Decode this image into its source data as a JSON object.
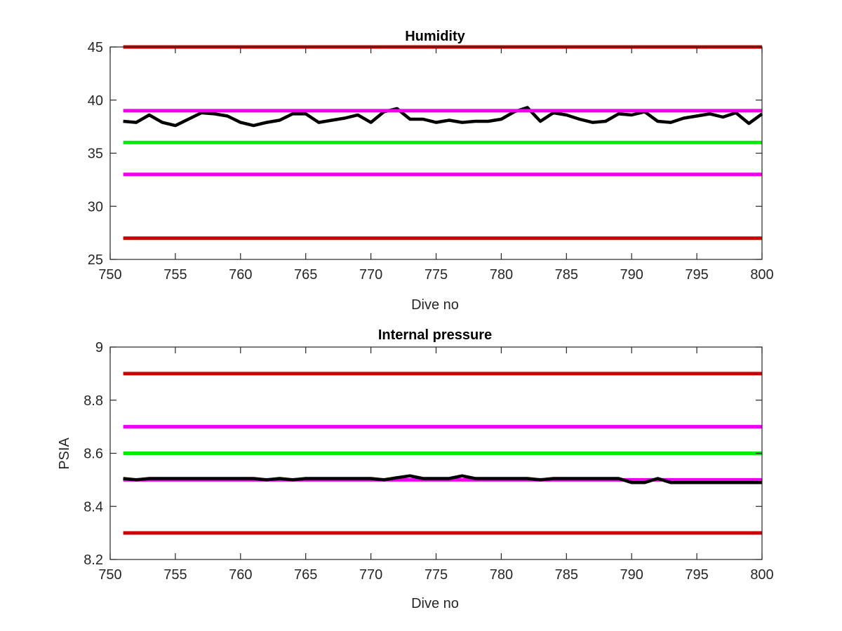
{
  "chart_data": [
    {
      "type": "line",
      "title": "Humidity",
      "xlabel": "Dive no",
      "ylabel": "",
      "xlim": [
        750,
        800
      ],
      "ylim": [
        25,
        45
      ],
      "xticks": [
        "750",
        "755",
        "760",
        "765",
        "770",
        "775",
        "780",
        "785",
        "790",
        "795",
        "800"
      ],
      "yticks": [
        "25",
        "30",
        "35",
        "40",
        "45"
      ],
      "grid": false,
      "series": [
        {
          "kind": "measured",
          "color": "#000000",
          "x": [
            751,
            752,
            753,
            754,
            755,
            756,
            757,
            758,
            759,
            760,
            761,
            762,
            763,
            764,
            765,
            766,
            767,
            768,
            769,
            770,
            771,
            772,
            773,
            774,
            775,
            776,
            777,
            778,
            779,
            780,
            781,
            782,
            783,
            784,
            785,
            786,
            787,
            788,
            789,
            790,
            791,
            792,
            793,
            794,
            795,
            796,
            797,
            798,
            799,
            800
          ],
          "y": [
            38.0,
            37.9,
            38.6,
            37.9,
            37.6,
            38.2,
            38.8,
            38.7,
            38.5,
            37.9,
            37.6,
            37.9,
            38.1,
            38.7,
            38.7,
            37.9,
            38.1,
            38.3,
            38.6,
            37.9,
            38.9,
            39.2,
            38.2,
            38.2,
            37.9,
            38.1,
            37.9,
            38.0,
            38.0,
            38.2,
            38.9,
            39.3,
            38.0,
            38.8,
            38.6,
            38.2,
            37.9,
            38.0,
            38.7,
            38.6,
            38.9,
            38.0,
            37.9,
            38.3,
            38.5,
            38.7,
            38.4,
            38.8,
            37.8,
            38.7
          ]
        },
        {
          "kind": "limit",
          "color": "#cc0000",
          "x": [
            751,
            800
          ],
          "y": [
            45,
            45
          ]
        },
        {
          "kind": "limit",
          "color": "#ee00ee",
          "x": [
            751,
            800
          ],
          "y": [
            39,
            39
          ]
        },
        {
          "kind": "limit",
          "color": "#00ee00",
          "x": [
            751,
            800
          ],
          "y": [
            36,
            36
          ]
        },
        {
          "kind": "limit",
          "color": "#ee00ee",
          "x": [
            751,
            800
          ],
          "y": [
            33,
            33
          ]
        },
        {
          "kind": "limit",
          "color": "#cc0000",
          "x": [
            751,
            800
          ],
          "y": [
            27,
            27
          ]
        }
      ]
    },
    {
      "type": "line",
      "title": "Internal pressure",
      "xlabel": "Dive no",
      "ylabel": "PSIA",
      "xlim": [
        750,
        800
      ],
      "ylim": [
        8.2,
        9.0
      ],
      "xticks": [
        "750",
        "755",
        "760",
        "765",
        "770",
        "775",
        "780",
        "785",
        "790",
        "795",
        "800"
      ],
      "yticks": [
        "8.2",
        "8.4",
        "8.6",
        "8.8",
        "9"
      ],
      "grid": false,
      "series": [
        {
          "kind": "measured",
          "color": "#000000",
          "x": [
            751,
            752,
            753,
            754,
            755,
            756,
            757,
            758,
            759,
            760,
            761,
            762,
            763,
            764,
            765,
            766,
            767,
            768,
            769,
            770,
            771,
            772,
            773,
            774,
            775,
            776,
            777,
            778,
            779,
            780,
            781,
            782,
            783,
            784,
            785,
            786,
            787,
            788,
            789,
            790,
            791,
            792,
            793,
            794,
            795,
            796,
            797,
            798,
            799,
            800
          ],
          "y": [
            8.505,
            8.5,
            8.505,
            8.505,
            8.505,
            8.505,
            8.505,
            8.505,
            8.505,
            8.505,
            8.505,
            8.5,
            8.505,
            8.5,
            8.505,
            8.505,
            8.505,
            8.505,
            8.505,
            8.505,
            8.5,
            8.508,
            8.515,
            8.505,
            8.505,
            8.505,
            8.515,
            8.505,
            8.505,
            8.505,
            8.505,
            8.505,
            8.5,
            8.505,
            8.505,
            8.505,
            8.505,
            8.505,
            8.505,
            8.49,
            8.49,
            8.505,
            8.49,
            8.49,
            8.49,
            8.49,
            8.49,
            8.49,
            8.49,
            8.49
          ]
        },
        {
          "kind": "limit",
          "color": "#cc0000",
          "x": [
            751,
            800
          ],
          "y": [
            8.9,
            8.9
          ]
        },
        {
          "kind": "limit",
          "color": "#ee00ee",
          "x": [
            751,
            800
          ],
          "y": [
            8.7,
            8.7
          ]
        },
        {
          "kind": "limit",
          "color": "#00ee00",
          "x": [
            751,
            800
          ],
          "y": [
            8.6,
            8.6
          ]
        },
        {
          "kind": "limit",
          "color": "#ee00ee",
          "x": [
            751,
            800
          ],
          "y": [
            8.5,
            8.5
          ]
        },
        {
          "kind": "limit",
          "color": "#cc0000",
          "x": [
            751,
            800
          ],
          "y": [
            8.3,
            8.3
          ]
        }
      ]
    }
  ]
}
